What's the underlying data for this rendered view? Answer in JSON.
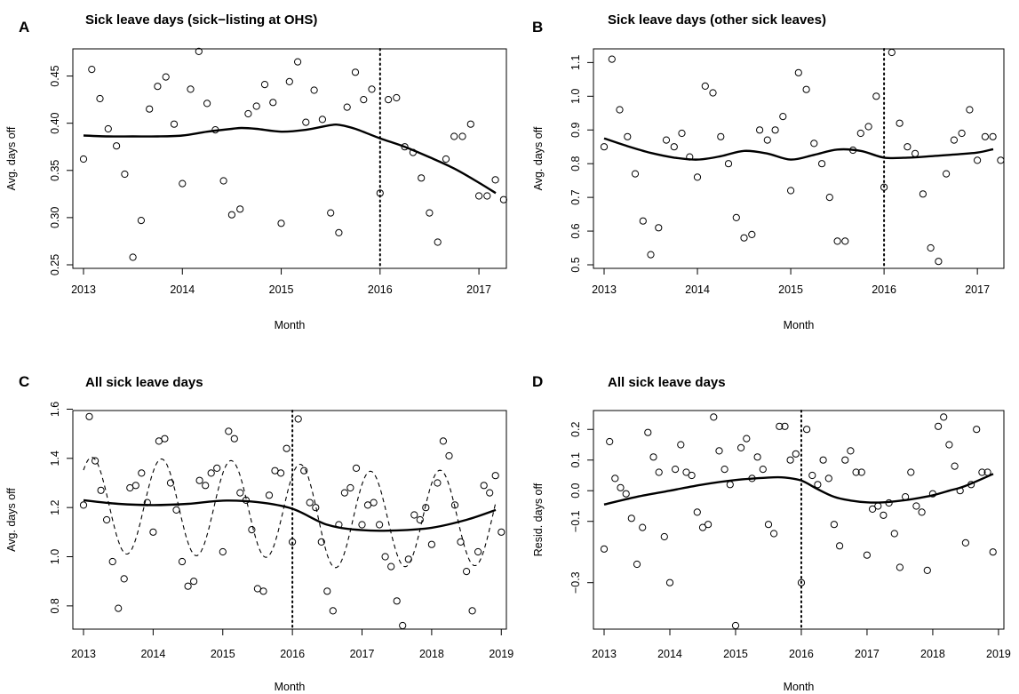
{
  "figure": {
    "panels": [
      {
        "letter": "A",
        "title": "Sick leave days (sick−listing at OHS)"
      },
      {
        "letter": "B",
        "title": "Sick leave days (other sick leaves)"
      },
      {
        "letter": "C",
        "title": "All sick leave days"
      },
      {
        "letter": "D",
        "title": "All sick leave days"
      }
    ]
  },
  "chart_data": [
    {
      "type": "scatter",
      "letter": "A",
      "title": "Sick leave days (sick−listing at OHS)",
      "xlabel": "Month",
      "ylabel": "Avg. days off",
      "xlim": [
        2013.0,
        2017.17
      ],
      "ylim": [
        0.25,
        0.475
      ],
      "x_ticks": [
        2013,
        2014,
        2015,
        2016,
        2017
      ],
      "y_ticks": [
        0.25,
        0.3,
        0.35,
        0.4,
        0.45
      ],
      "y_tick_labels": [
        "0.25",
        "0.30",
        "0.35",
        "0.40",
        "0.45"
      ],
      "grid": false,
      "vline": 2016.0,
      "points": {
        "start": 2013.0,
        "step": 0.08333,
        "y": [
          0.362,
          0.457,
          0.426,
          0.394,
          0.376,
          0.346,
          0.258,
          0.297,
          0.415,
          0.439,
          0.449,
          0.399,
          0.336,
          0.436,
          0.476,
          0.421,
          0.393,
          0.339,
          0.303,
          0.309,
          0.41,
          0.418,
          0.441,
          0.422,
          0.294,
          0.444,
          0.465,
          0.401,
          0.435,
          0.404,
          0.305,
          0.284,
          0.417,
          0.454,
          0.425,
          0.436,
          0.326,
          0.425,
          0.427,
          0.375,
          0.369,
          0.342,
          0.305,
          0.274,
          0.362,
          0.386,
          0.386,
          0.399,
          0.323,
          0.323,
          0.34,
          0.319
        ]
      },
      "smooth": {
        "x": [
          2013.0,
          2013.25,
          2013.5,
          2013.75,
          2014.0,
          2014.25,
          2014.5,
          2014.6,
          2014.75,
          2015.0,
          2015.25,
          2015.5,
          2015.6,
          2015.75,
          2016.0,
          2016.25,
          2016.5,
          2016.75,
          2017.0,
          2017.17
        ],
        "y": [
          0.387,
          0.386,
          0.386,
          0.386,
          0.387,
          0.391,
          0.394,
          0.395,
          0.394,
          0.391,
          0.393,
          0.398,
          0.398,
          0.394,
          0.384,
          0.375,
          0.364,
          0.352,
          0.337,
          0.326
        ]
      }
    },
    {
      "type": "scatter",
      "letter": "B",
      "title": "Sick leave days (other sick leaves)",
      "xlabel": "Month",
      "ylabel": "Avg. days off",
      "xlim": [
        2013.0,
        2017.17
      ],
      "ylim": [
        0.5,
        1.13
      ],
      "x_ticks": [
        2013,
        2014,
        2015,
        2016,
        2017
      ],
      "y_ticks": [
        0.5,
        0.6,
        0.7,
        0.8,
        0.9,
        1.0,
        1.1
      ],
      "y_tick_labels": [
        "0.5",
        "0.6",
        "0.7",
        "0.8",
        "0.9",
        "1.0",
        "1.1"
      ],
      "grid": false,
      "vline": 2016.0,
      "points": {
        "start": 2013.0,
        "step": 0.08333,
        "y": [
          0.85,
          1.11,
          0.96,
          0.88,
          0.77,
          0.63,
          0.53,
          0.61,
          0.87,
          0.85,
          0.89,
          0.82,
          0.76,
          1.03,
          1.01,
          0.88,
          0.8,
          0.64,
          0.58,
          0.59,
          0.9,
          0.87,
          0.9,
          0.94,
          0.72,
          1.07,
          1.02,
          0.86,
          0.8,
          0.7,
          0.57,
          0.57,
          0.84,
          0.89,
          0.91,
          1.0,
          0.73,
          1.13,
          0.92,
          0.85,
          0.83,
          0.71,
          0.55,
          0.51,
          0.77,
          0.87,
          0.89,
          0.96,
          0.81,
          0.88,
          0.88,
          0.81
        ]
      },
      "smooth": {
        "x": [
          2013.0,
          2013.25,
          2013.5,
          2013.75,
          2014.0,
          2014.25,
          2014.5,
          2014.75,
          2015.0,
          2015.25,
          2015.5,
          2015.75,
          2016.0,
          2016.25,
          2016.5,
          2016.75,
          2017.0,
          2017.17
        ],
        "y": [
          0.875,
          0.852,
          0.832,
          0.818,
          0.812,
          0.822,
          0.838,
          0.83,
          0.812,
          0.826,
          0.842,
          0.838,
          0.818,
          0.818,
          0.822,
          0.827,
          0.833,
          0.843
        ]
      }
    },
    {
      "type": "scatter",
      "letter": "C",
      "title": "All sick leave days",
      "xlabel": "Month",
      "ylabel": "Avg. days off",
      "xlim": [
        2013.0,
        2018.92
      ],
      "ylim": [
        0.72,
        1.58
      ],
      "x_ticks": [
        2013,
        2014,
        2015,
        2016,
        2017,
        2018,
        2019
      ],
      "y_ticks": [
        0.8,
        1.0,
        1.2,
        1.4,
        1.6
      ],
      "y_tick_labels": [
        "0.8",
        "1.0",
        "1.2",
        "1.4",
        "1.6"
      ],
      "grid": false,
      "vline": 2016.0,
      "points": {
        "start": 2013.0,
        "step": 0.08333,
        "y": [
          1.21,
          1.57,
          1.39,
          1.27,
          1.15,
          0.98,
          0.79,
          0.91,
          1.28,
          1.29,
          1.34,
          1.22,
          1.1,
          1.47,
          1.48,
          1.3,
          1.19,
          0.98,
          0.88,
          0.9,
          1.31,
          1.29,
          1.34,
          1.36,
          1.02,
          1.51,
          1.48,
          1.26,
          1.23,
          1.11,
          0.87,
          0.86,
          1.25,
          1.35,
          1.34,
          1.44,
          1.06,
          1.56,
          1.35,
          1.22,
          1.2,
          1.06,
          0.86,
          0.78,
          1.13,
          1.26,
          1.28,
          1.36,
          1.13,
          1.21,
          1.22,
          1.13,
          1.0,
          0.96,
          0.82,
          0.72,
          0.99,
          1.17,
          1.15,
          1.2,
          1.05,
          1.3,
          1.47,
          1.41,
          1.21,
          1.06,
          0.94,
          0.78,
          1.02,
          1.29,
          1.26,
          1.33,
          1.1
        ]
      },
      "smooth": {
        "x": [
          2013.0,
          2013.5,
          2014.0,
          2014.5,
          2015.0,
          2015.5,
          2016.0,
          2016.5,
          2017.0,
          2017.5,
          2018.0,
          2018.5,
          2018.92
        ],
        "y": [
          1.23,
          1.215,
          1.21,
          1.215,
          1.228,
          1.222,
          1.195,
          1.13,
          1.108,
          1.107,
          1.118,
          1.15,
          1.19
        ]
      },
      "seasonal": {
        "x_start": 2013.0,
        "x_end": 2018.92,
        "baseline": [
          [
            2013.0,
            1.21
          ],
          [
            2016.0,
            1.19
          ],
          [
            2016.5,
            1.15
          ],
          [
            2018.92,
            1.16
          ]
        ],
        "amplitude": 0.195,
        "peak_phase": 0.12
      }
    },
    {
      "type": "scatter",
      "letter": "D",
      "title": "All sick leave days",
      "xlabel": "Month",
      "ylabel": "Resid. days off",
      "xlim": [
        2013.0,
        2018.92
      ],
      "ylim": [
        -0.44,
        0.25
      ],
      "x_ticks": [
        2013,
        2014,
        2015,
        2016,
        2017,
        2018,
        2019
      ],
      "y_ticks": [
        -0.3,
        -0.1,
        0.0,
        0.1,
        0.2
      ],
      "y_tick_labels": [
        "−0.3",
        "−0.1",
        "0.0",
        "0.1",
        "0.2"
      ],
      "grid": false,
      "vline": 2016.0,
      "points": {
        "start": 2013.0,
        "step": 0.08333,
        "y": [
          -0.19,
          0.16,
          0.04,
          0.01,
          -0.01,
          -0.09,
          -0.24,
          -0.12,
          0.19,
          0.11,
          0.06,
          -0.15,
          -0.3,
          0.07,
          0.15,
          0.06,
          0.05,
          -0.07,
          -0.12,
          -0.11,
          0.24,
          0.13,
          0.07,
          0.02,
          -0.44,
          0.14,
          0.17,
          0.04,
          0.11,
          0.07,
          -0.11,
          -0.14,
          0.21,
          0.21,
          0.1,
          0.12,
          -0.3,
          0.2,
          0.05,
          0.02,
          0.1,
          0.04,
          -0.11,
          -0.18,
          0.1,
          0.13,
          0.06,
          0.06,
          -0.21,
          -0.06,
          -0.05,
          -0.08,
          -0.04,
          -0.14,
          -0.25,
          -0.02,
          0.06,
          -0.05,
          -0.07,
          -0.26,
          -0.01,
          0.21,
          0.24,
          0.15,
          0.08,
          0.0,
          -0.17,
          0.02,
          0.2,
          0.06,
          0.06,
          -0.2
        ]
      },
      "smooth": {
        "x": [
          2013.0,
          2013.5,
          2014.0,
          2014.5,
          2015.0,
          2015.5,
          2015.75,
          2016.0,
          2016.25,
          2016.5,
          2016.75,
          2017.0,
          2017.25,
          2017.5,
          2017.75,
          2018.0,
          2018.25,
          2018.5,
          2018.92
        ],
        "y": [
          -0.045,
          -0.02,
          0.0,
          0.02,
          0.035,
          0.043,
          0.043,
          0.033,
          0.005,
          -0.02,
          -0.032,
          -0.038,
          -0.038,
          -0.033,
          -0.025,
          -0.015,
          0.0,
          0.016,
          0.055
        ]
      }
    }
  ]
}
